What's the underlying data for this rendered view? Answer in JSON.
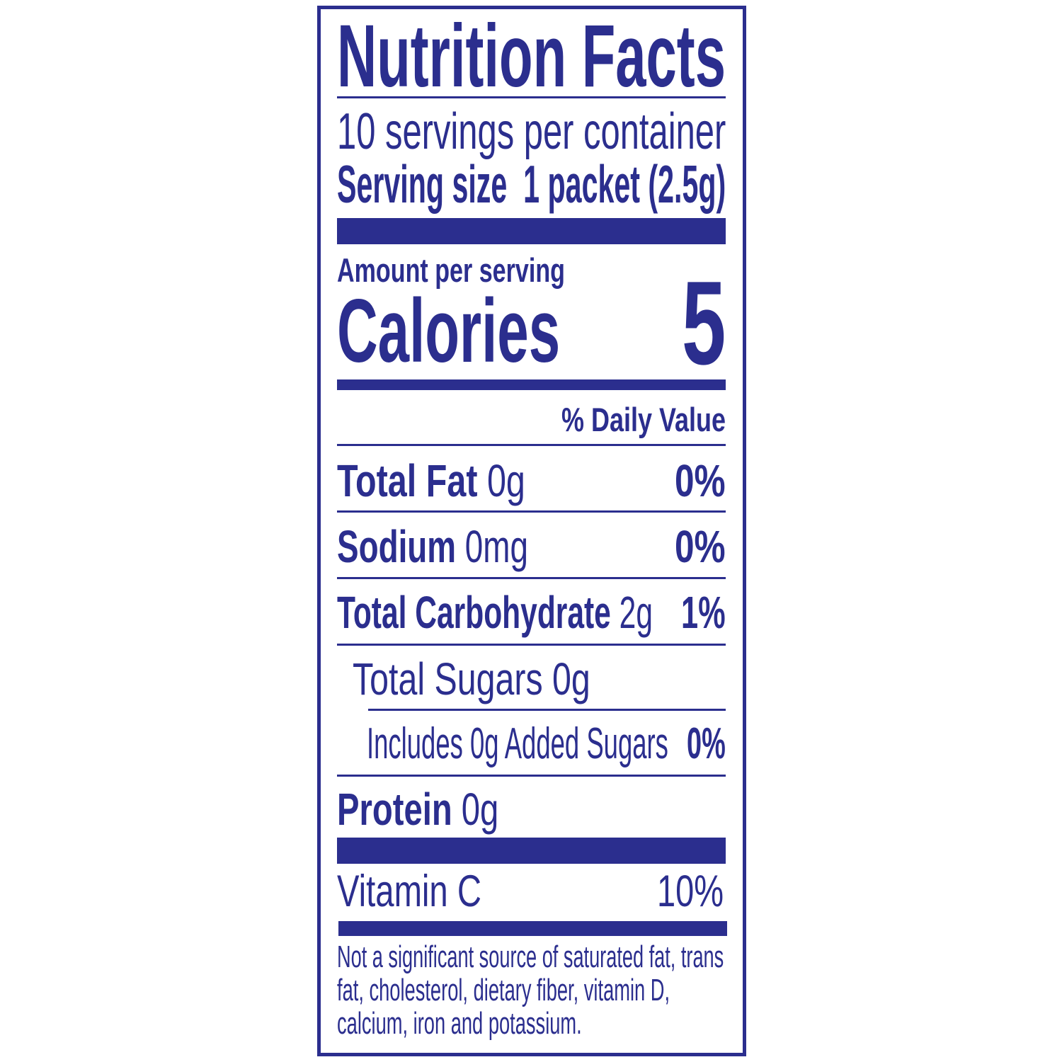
{
  "label": {
    "title": "Nutrition Facts",
    "servings_per_container": "10 servings per container",
    "serving_size_label": "Serving size",
    "serving_size_value": "1 packet (2.5g)",
    "amount_per_serving": "Amount per serving",
    "calories_label": "Calories",
    "calories_value": "5",
    "daily_value_header": "% Daily Value",
    "nutrients": [
      {
        "name": "Total Fat",
        "amount": "0g",
        "dv": "0%"
      },
      {
        "name": "Sodium",
        "amount": "0mg",
        "dv": "0%"
      },
      {
        "name": "Total Carbohydrate",
        "amount": "2g",
        "dv": "1%"
      },
      {
        "name": "Total Sugars 0g"
      },
      {
        "name": "Includes 0g Added Sugars",
        "dv": "0%"
      },
      {
        "name": "Protein",
        "amount": "0g"
      }
    ],
    "vitamins": [
      {
        "name": "Vitamin C",
        "dv": "10%"
      }
    ],
    "footnote_lines": [
      "Not a significant source of saturated fat, trans",
      "fat, cholesterol, dietary fiber, vitamin D,",
      "calcium, iron and potassium."
    ]
  },
  "colors": {
    "ink": "#2b2e8e",
    "background": "#ffffff"
  }
}
